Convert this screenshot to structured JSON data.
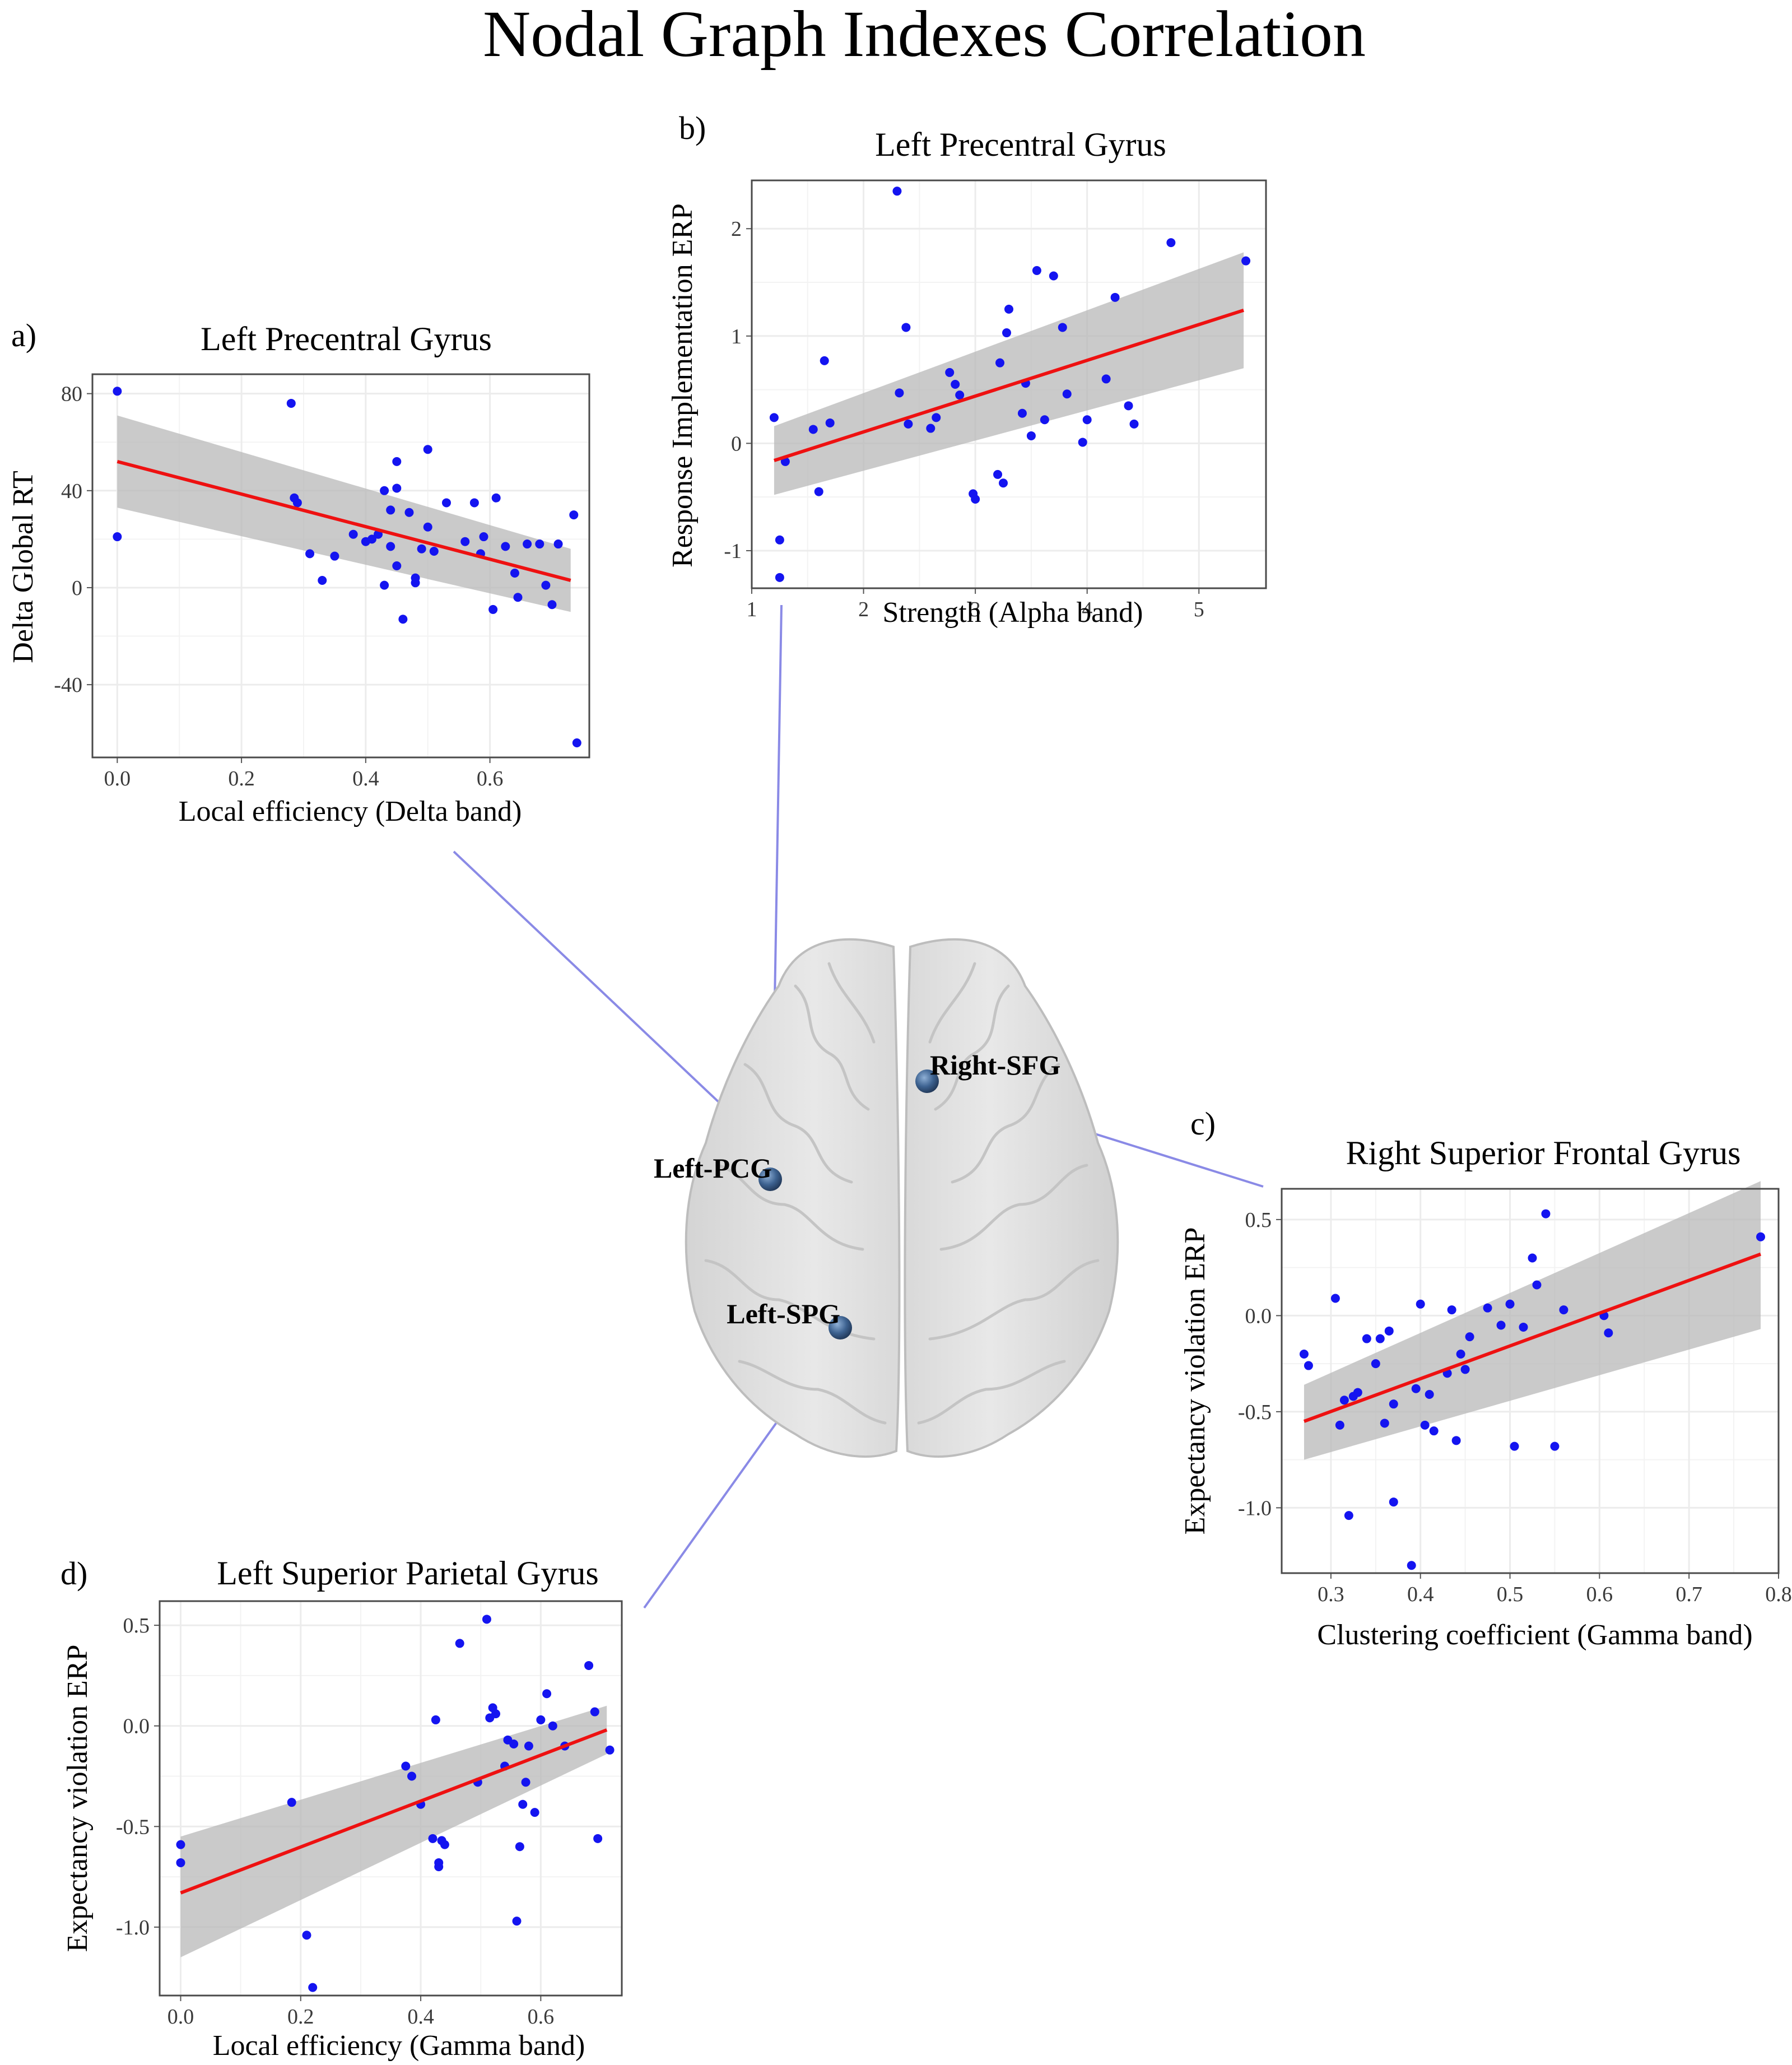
{
  "title": "Nodal Graph Indexes Correlation",
  "colors": {
    "points": "#1414f0",
    "fit_line": "#ee1111",
    "ci_band": "#b8b8b8",
    "connector": "#8a8ae6",
    "node": "#3d6290",
    "grid": "#ececec"
  },
  "brain": {
    "regions": [
      {
        "id": "right-sfg",
        "label": "Right-SFG"
      },
      {
        "id": "left-pcg",
        "label": "Left-PCG"
      },
      {
        "id": "left-spg",
        "label": "Left-SPG"
      }
    ]
  },
  "chart_data": [
    {
      "id": "a",
      "panel_label": "a)",
      "type": "scatter",
      "title": "Left Precentral Gyrus",
      "xlabel": "Local efficiency (Delta band)",
      "ylabel": "Delta Global RT",
      "xlim": [
        -0.04,
        0.76
      ],
      "ylim": [
        -70,
        88
      ],
      "xticks": [
        0,
        0.2,
        0.4,
        0.6
      ],
      "xtick_labels": [
        "0.0",
        "0.2",
        "0.4",
        "0.6"
      ],
      "yticks": [
        -40,
        0,
        40,
        80
      ],
      "ytick_labels": [
        "-40",
        "0",
        "40",
        "80"
      ],
      "fit": {
        "x": [
          0,
          0.73
        ],
        "y": [
          52,
          3
        ]
      },
      "ci_band": {
        "x": [
          0,
          0.73
        ],
        "lower": [
          33,
          -10
        ],
        "upper": [
          71,
          16
        ]
      },
      "points": {
        "x": [
          0.0,
          0.0,
          0.28,
          0.285,
          0.29,
          0.31,
          0.33,
          0.35,
          0.38,
          0.4,
          0.41,
          0.42,
          0.43,
          0.43,
          0.44,
          0.44,
          0.45,
          0.45,
          0.45,
          0.46,
          0.47,
          0.48,
          0.48,
          0.49,
          0.5,
          0.5,
          0.51,
          0.53,
          0.56,
          0.575,
          0.585,
          0.59,
          0.605,
          0.61,
          0.625,
          0.64,
          0.645,
          0.66,
          0.68,
          0.69,
          0.7,
          0.71,
          0.735,
          0.74
        ],
        "y": [
          81,
          21,
          76,
          37,
          35,
          14,
          3,
          13,
          22,
          19,
          20,
          22,
          40,
          1,
          32,
          17,
          52,
          41,
          9,
          -13,
          31,
          2,
          4,
          16,
          57,
          25,
          15,
          35,
          19,
          35,
          14,
          21,
          -9,
          37,
          17,
          6,
          -4,
          18,
          18,
          1,
          -7,
          18,
          30,
          -64
        ]
      }
    },
    {
      "id": "b",
      "panel_label": "b)",
      "type": "scatter",
      "title": "Left Precentral Gyrus",
      "xlabel": "Strength (Alpha band)",
      "ylabel": "Response Implementation ERP",
      "xlim": [
        1.0,
        5.6
      ],
      "ylim": [
        -1.35,
        2.45
      ],
      "xticks": [
        1,
        2,
        3,
        4,
        5
      ],
      "xtick_labels": [
        "1",
        "2",
        "3",
        "4",
        "5"
      ],
      "yticks": [
        -1,
        0,
        1,
        2
      ],
      "ytick_labels": [
        "-1",
        "0",
        "1",
        "2"
      ],
      "fit": {
        "x": [
          1.2,
          5.4
        ],
        "y": [
          -0.16,
          1.24
        ]
      },
      "ci_band": {
        "x": [
          1.2,
          5.4
        ],
        "lower": [
          -0.48,
          0.7
        ],
        "upper": [
          0.16,
          1.78
        ]
      },
      "points": {
        "x": [
          1.2,
          1.25,
          1.25,
          1.3,
          1.55,
          1.6,
          1.65,
          1.7,
          2.3,
          2.32,
          2.38,
          2.4,
          2.6,
          2.65,
          2.77,
          2.82,
          2.86,
          2.98,
          3.0,
          3.2,
          3.22,
          3.25,
          3.28,
          3.3,
          3.42,
          3.45,
          3.5,
          3.55,
          3.62,
          3.7,
          3.78,
          3.82,
          3.96,
          4.0,
          4.17,
          4.25,
          4.37,
          4.42,
          4.75,
          5.42
        ],
        "y": [
          0.24,
          -0.9,
          -1.25,
          -0.17,
          0.13,
          -0.45,
          0.77,
          0.19,
          2.35,
          0.47,
          1.08,
          0.18,
          0.14,
          0.24,
          0.66,
          0.55,
          0.45,
          -0.47,
          -0.52,
          -0.29,
          0.75,
          -0.37,
          1.03,
          1.25,
          0.28,
          0.56,
          0.07,
          1.61,
          0.22,
          1.56,
          1.08,
          0.46,
          0.01,
          0.22,
          0.6,
          1.36,
          0.35,
          0.18,
          1.87,
          1.7
        ]
      }
    },
    {
      "id": "c",
      "panel_label": "c)",
      "type": "scatter",
      "title": "Right Superior Frontal Gyrus",
      "xlabel": "Clustering coefficient (Gamma band)",
      "ylabel": "Expectancy violation ERP",
      "xlim": [
        0.245,
        0.8
      ],
      "ylim": [
        -1.34,
        0.66
      ],
      "xticks": [
        0.3,
        0.4,
        0.5,
        0.6,
        0.7,
        0.8
      ],
      "xtick_labels": [
        "0.3",
        "0.4",
        "0.5",
        "0.6",
        "0.7",
        "0.8"
      ],
      "yticks": [
        -1.0,
        -0.5,
        0.0,
        0.5
      ],
      "ytick_labels": [
        "-1.0",
        "-0.5",
        "0.0",
        "0.5"
      ],
      "fit": {
        "x": [
          0.27,
          0.78
        ],
        "y": [
          -0.55,
          0.32
        ]
      },
      "ci_band": {
        "x": [
          0.27,
          0.78
        ],
        "lower": [
          -0.75,
          -0.07
        ],
        "upper": [
          -0.36,
          0.7
        ]
      },
      "points": {
        "x": [
          0.27,
          0.275,
          0.305,
          0.31,
          0.315,
          0.32,
          0.325,
          0.33,
          0.34,
          0.35,
          0.355,
          0.36,
          0.365,
          0.37,
          0.37,
          0.39,
          0.395,
          0.4,
          0.405,
          0.41,
          0.415,
          0.43,
          0.435,
          0.44,
          0.445,
          0.45,
          0.455,
          0.475,
          0.49,
          0.5,
          0.505,
          0.515,
          0.525,
          0.53,
          0.54,
          0.55,
          0.56,
          0.605,
          0.61,
          0.78
        ],
        "y": [
          -0.2,
          -0.26,
          0.09,
          -0.57,
          -0.44,
          -1.04,
          -0.42,
          -0.4,
          -0.12,
          -0.25,
          -0.12,
          -0.56,
          -0.08,
          -0.97,
          -0.46,
          -1.3,
          -0.38,
          0.06,
          -0.57,
          -0.41,
          -0.6,
          -0.3,
          0.03,
          -0.65,
          -0.2,
          -0.28,
          -0.11,
          0.04,
          -0.05,
          0.06,
          -0.68,
          -0.06,
          0.3,
          0.16,
          0.53,
          -0.68,
          0.03,
          0.0,
          -0.09,
          0.41
        ]
      }
    },
    {
      "id": "d",
      "panel_label": "d)",
      "type": "scatter",
      "title": "Left Superior Parietal Gyrus",
      "xlabel": "Local efficiency (Gamma band)",
      "ylabel": "Expectancy violation ERP",
      "xlim": [
        -0.035,
        0.735
      ],
      "ylim": [
        -1.34,
        0.62
      ],
      "xticks": [
        0,
        0.2,
        0.4,
        0.6
      ],
      "xtick_labels": [
        "0.0",
        "0.2",
        "0.4",
        "0.6"
      ],
      "yticks": [
        -1.0,
        -0.5,
        0.0,
        0.5
      ],
      "ytick_labels": [
        "-1.0",
        "-0.5",
        "0.0",
        "0.5"
      ],
      "fit": {
        "x": [
          0,
          0.71
        ],
        "y": [
          -0.83,
          -0.02
        ]
      },
      "ci_band": {
        "x": [
          0,
          0.71
        ],
        "lower": [
          -1.15,
          -0.14
        ],
        "upper": [
          -0.55,
          0.1
        ]
      },
      "points": {
        "x": [
          0.0,
          0.0,
          0.185,
          0.21,
          0.22,
          0.375,
          0.385,
          0.4,
          0.42,
          0.425,
          0.43,
          0.43,
          0.435,
          0.44,
          0.465,
          0.495,
          0.51,
          0.515,
          0.52,
          0.525,
          0.54,
          0.545,
          0.555,
          0.56,
          0.565,
          0.57,
          0.575,
          0.58,
          0.59,
          0.6,
          0.61,
          0.62,
          0.64,
          0.68,
          0.69,
          0.695,
          0.715
        ],
        "y": [
          -0.59,
          -0.68,
          -0.38,
          -1.04,
          -1.3,
          -0.2,
          -0.25,
          -0.39,
          -0.56,
          0.03,
          -0.7,
          -0.68,
          -0.57,
          -0.59,
          0.41,
          -0.28,
          0.53,
          0.04,
          0.09,
          0.06,
          -0.2,
          -0.07,
          -0.09,
          -0.97,
          -0.6,
          -0.39,
          -0.28,
          -0.1,
          -0.43,
          0.03,
          0.16,
          0.0,
          -0.1,
          0.3,
          0.07,
          -0.56,
          -0.12
        ]
      }
    }
  ]
}
